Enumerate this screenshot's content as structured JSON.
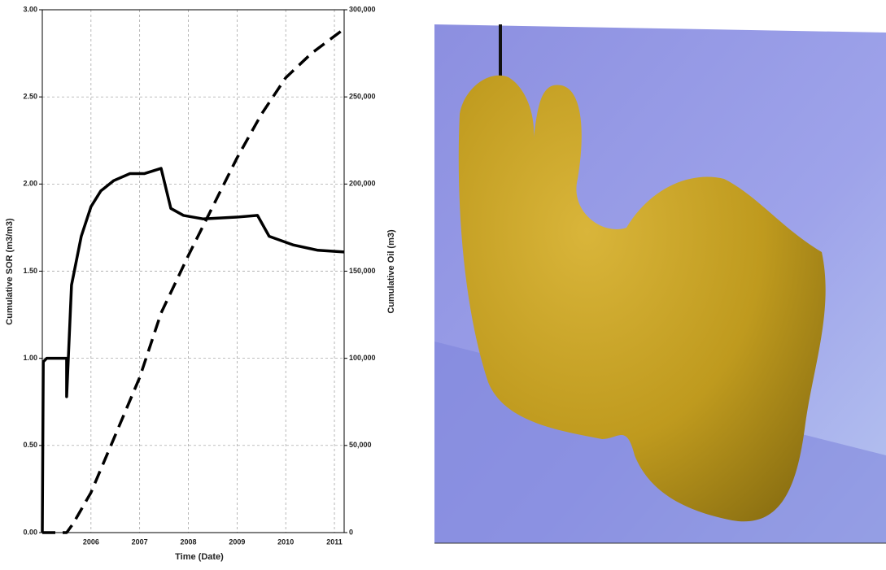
{
  "chart_data": {
    "type": "line",
    "xlabel": "Time (Date)",
    "ylabel": "Cumulative SOR (m3/m3)",
    "y2label": "Cumulative Oil (m3)",
    "xlim": [
      2005.0,
      2011.2
    ],
    "xticks": [
      2006,
      2007,
      2008,
      2009,
      2010,
      2011
    ],
    "ylim": [
      0,
      3
    ],
    "yticks": [
      {
        "value": 0,
        "label": "0.00"
      },
      {
        "value": 0.5,
        "label": "0.50"
      },
      {
        "value": 1,
        "label": "1.00"
      },
      {
        "value": 1.5,
        "label": "1.50"
      },
      {
        "value": 2,
        "label": "2.00"
      },
      {
        "value": 2.5,
        "label": "2.50"
      },
      {
        "value": 3,
        "label": "3.00"
      }
    ],
    "y2lim": [
      0,
      300000
    ],
    "y2ticks": [
      0,
      {
        "value": 50000,
        "label": "50,000"
      },
      {
        "value": 100000,
        "label": "100,000"
      },
      {
        "value": 150000,
        "label": "150,000"
      },
      {
        "value": 200000,
        "label": "200,000"
      },
      {
        "value": 250000,
        "label": "250,000"
      },
      {
        "value": 300000,
        "label": "300,000"
      }
    ],
    "grid": true,
    "series": [
      {
        "color": "#000000",
        "dash": "solid",
        "x": [
          2005.0,
          2005.02,
          2005.09,
          2005.5,
          2005.5,
          2005.6,
          2005.8,
          2006.0,
          2006.2,
          2006.47,
          2006.8,
          2007.1,
          2007.44,
          2007.64,
          2007.9,
          2008.3,
          2008.99,
          2009.42,
          2009.66,
          2010.16,
          2010.66,
          2011.2
        ],
        "values": [
          0,
          0.98,
          1.0,
          1.0,
          0.78,
          1.42,
          1.7,
          1.87,
          1.96,
          2.02,
          2.06,
          2.06,
          2.09,
          1.86,
          1.82,
          1.8,
          1.81,
          1.82,
          1.7,
          1.65,
          1.62,
          1.61
        ]
      },
      {
        "color": "#000000",
        "dash": "dashed",
        "axis": "y2",
        "x": [
          2005.0,
          2005.5,
          2005.63,
          2006.0,
          2006.47,
          2007.0,
          2007.44,
          2008.0,
          2008.5,
          2009.0,
          2009.5,
          2010.0,
          2010.53,
          2011.15
        ],
        "values": [
          0,
          0,
          5000,
          23000,
          54000,
          89000,
          126000,
          159000,
          187000,
          215000,
          240000,
          261000,
          275000,
          288000
        ]
      }
    ]
  }
}
